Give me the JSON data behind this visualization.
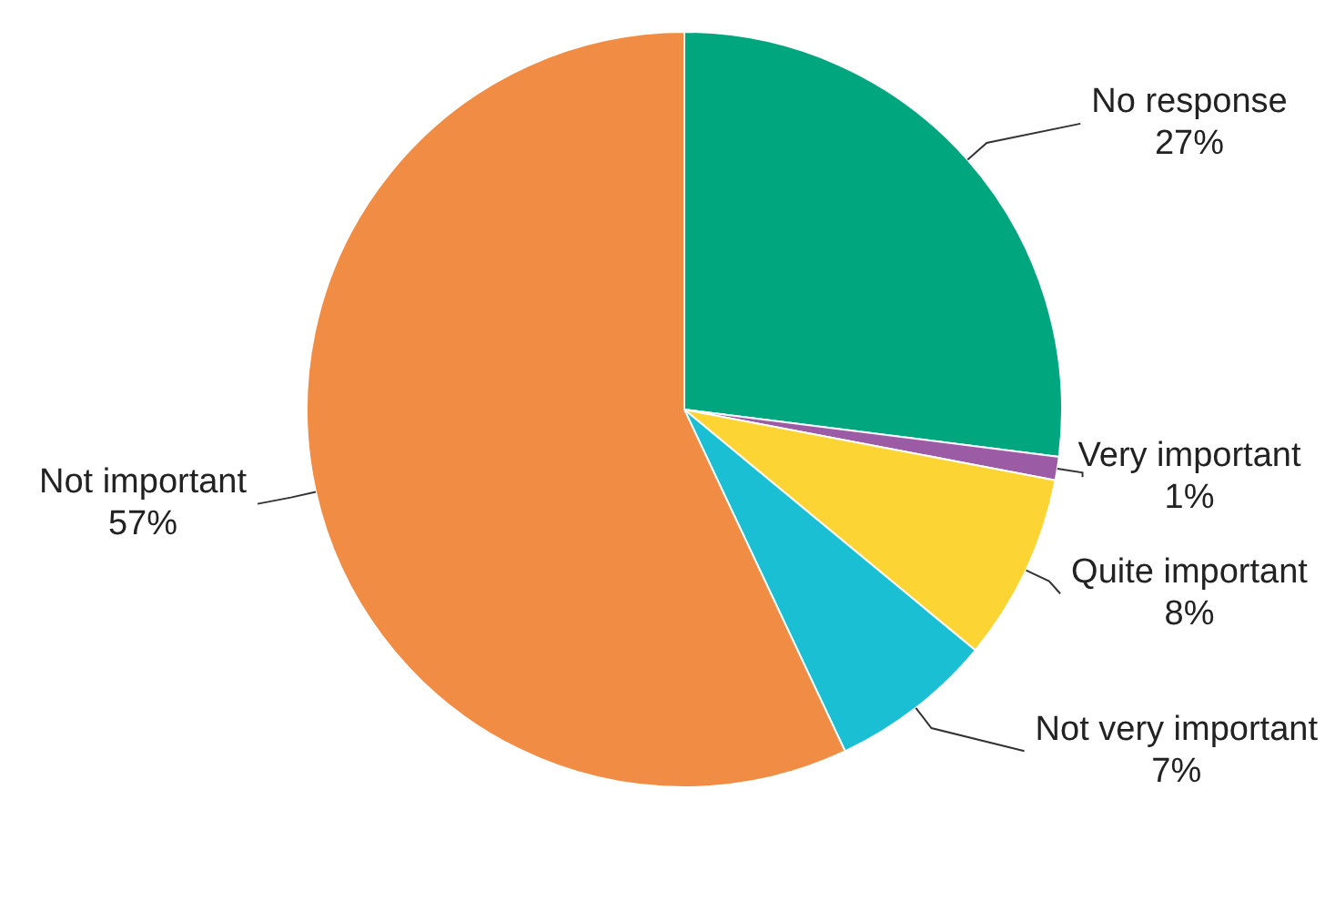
{
  "chart_data": {
    "type": "pie",
    "categories": [
      "No response",
      "Very important",
      "Quite important",
      "Not very important",
      "Not important"
    ],
    "values": [
      27,
      1,
      8,
      7,
      57
    ],
    "value_labels": [
      "27%",
      "1%",
      "8%",
      "7%",
      "57%"
    ],
    "colors": [
      "#00a67e",
      "#9b5ba5",
      "#fcd535",
      "#1abfd3",
      "#f08c43"
    ]
  }
}
